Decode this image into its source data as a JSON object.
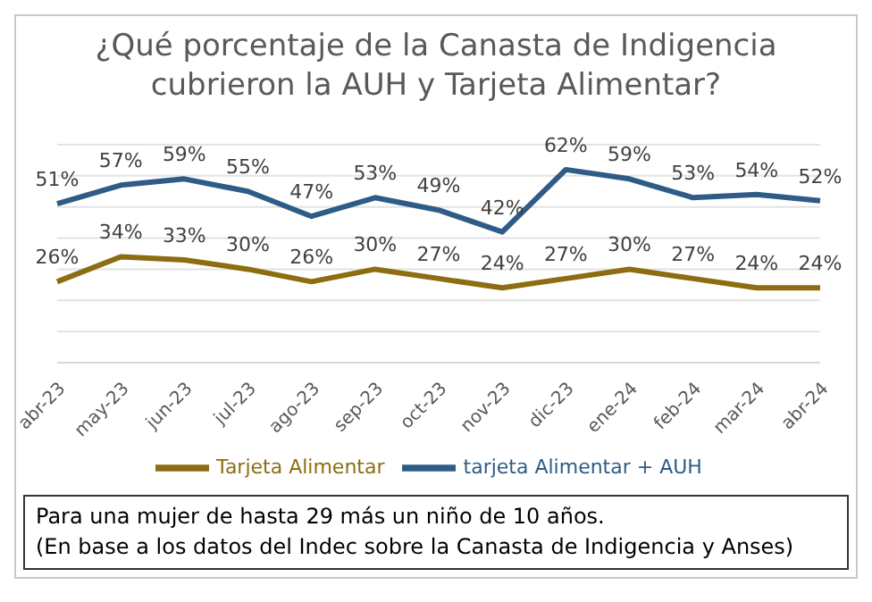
{
  "chart_data": {
    "type": "line",
    "title": "¿Qué porcentaje de la Canasta de Indigencia cubrieron la AUH y Tarjeta Alimentar?",
    "categories": [
      "abr-23",
      "may-23",
      "jun-23",
      "jul-23",
      "ago-23",
      "sep-23",
      "oct-23",
      "nov-23",
      "dic-23",
      "ene-24",
      "feb-24",
      "mar-24",
      "abr-24"
    ],
    "series": [
      {
        "name": "Tarjeta Alimentar",
        "color": "#8c6d12",
        "values": [
          26,
          34,
          33,
          30,
          26,
          30,
          27,
          24,
          27,
          30,
          27,
          24,
          24
        ],
        "value_labels": [
          "26%",
          "34%",
          "33%",
          "30%",
          "26%",
          "30%",
          "27%",
          "24%",
          "27%",
          "30%",
          "27%",
          "24%",
          "24%"
        ]
      },
      {
        "name": "tarjeta Alimentar + AUH",
        "color": "#2e5c87",
        "values": [
          51,
          57,
          59,
          55,
          47,
          53,
          49,
          42,
          62,
          59,
          53,
          54,
          52
        ],
        "value_labels": [
          "51%",
          "57%",
          "59%",
          "55%",
          "47%",
          "53%",
          "49%",
          "42%",
          "62%",
          "59%",
          "53%",
          "54%",
          "52%"
        ]
      }
    ],
    "ylim": [
      0,
      70
    ],
    "yticks": [
      {
        "value": 0,
        "label": null
      },
      {
        "value": 10,
        "label": null
      },
      {
        "value": 20,
        "label": null
      },
      {
        "value": 30,
        "label": null
      },
      {
        "value": 40,
        "label": null
      },
      {
        "value": 50,
        "label": null
      },
      {
        "value": 60,
        "label": null
      },
      {
        "value": 70,
        "label": null
      }
    ],
    "tick_labels": "x",
    "grid": "y",
    "legend": "bottom",
    "marker": "none",
    "line_style": "solid",
    "annotations": [
      "Para una mujer de hasta 29 más un niño de 10 años.",
      "(En base a los datos del Indec sobre la Canasta de Indigencia y Anses)"
    ]
  }
}
